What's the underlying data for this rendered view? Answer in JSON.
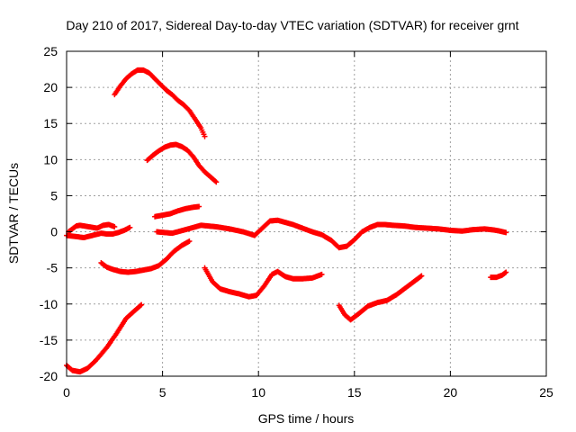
{
  "chart_data": {
    "type": "scatter",
    "title": "Day 210 of 2017, Sidereal Day-to-day VTEC variation (SDTVAR) for receiver grnt",
    "xlabel": "GPS time / hours",
    "ylabel": "SDTVAR / TECUs",
    "xlim": [
      0,
      25
    ],
    "ylim": [
      -20,
      25
    ],
    "x_ticks": [
      0,
      5,
      10,
      15,
      20,
      25
    ],
    "y_ticks": [
      -20,
      -15,
      -10,
      -5,
      0,
      5,
      10,
      15,
      20,
      25
    ],
    "x_tick_labels": [
      "0",
      "5",
      "10",
      "15",
      "20",
      "25"
    ],
    "y_tick_labels": [
      "-20",
      "-15",
      "-10",
      "-5",
      "0",
      "5",
      "10",
      "15",
      "20",
      "25"
    ],
    "grid": true,
    "marker": "plus",
    "color": "#ff0000",
    "series": [
      {
        "name": "track-upper-arc",
        "x": [
          2.5,
          2.8,
          3.1,
          3.4,
          3.7,
          4.0,
          4.3,
          4.6,
          4.9,
          5.2,
          5.5,
          5.8,
          6.1,
          6.4,
          6.7,
          7.0,
          7.2
        ],
        "y": [
          19.0,
          20.2,
          21.2,
          21.9,
          22.4,
          22.4,
          22.0,
          21.2,
          20.4,
          19.6,
          19.0,
          18.2,
          17.6,
          16.8,
          15.6,
          14.4,
          13.2
        ]
      },
      {
        "name": "track-mid-arc",
        "x": [
          4.2,
          4.5,
          4.8,
          5.1,
          5.4,
          5.7,
          6.0,
          6.3,
          6.6,
          6.9,
          7.2,
          7.5,
          7.8
        ],
        "y": [
          9.9,
          10.6,
          11.2,
          11.7,
          12.0,
          12.1,
          11.8,
          11.3,
          10.4,
          9.2,
          8.3,
          7.6,
          6.9
        ]
      },
      {
        "name": "track-short-rise",
        "x": [
          4.6,
          5.0,
          5.4,
          5.8,
          6.2,
          6.6,
          6.9
        ],
        "y": [
          2.1,
          2.3,
          2.5,
          2.9,
          3.2,
          3.4,
          3.5
        ]
      },
      {
        "name": "track-near-zero-left",
        "x": [
          0.0,
          0.3,
          0.6,
          0.9,
          1.2,
          1.5,
          1.8,
          2.1,
          2.4,
          2.7,
          3.0,
          3.3
        ],
        "y": [
          -0.5,
          -0.6,
          -0.7,
          -0.8,
          -0.6,
          -0.4,
          -0.2,
          -0.3,
          -0.3,
          -0.1,
          0.2,
          0.6
        ]
      },
      {
        "name": "track-near-zero-bumps",
        "x": [
          0.1,
          0.3,
          0.5,
          0.7,
          1.6,
          1.9,
          2.2,
          2.5
        ],
        "y": [
          0.0,
          0.4,
          0.8,
          0.9,
          0.5,
          0.9,
          1.0,
          0.7
        ]
      },
      {
        "name": "track-near-zero-main",
        "x": [
          4.7,
          5.5,
          6.2,
          7.0,
          7.8,
          8.5,
          9.2,
          9.8,
          10.2,
          10.6,
          11.0,
          11.4,
          11.8,
          12.3,
          12.8,
          13.3,
          13.8,
          14.2,
          14.6,
          15.0,
          15.4,
          15.8,
          16.2,
          16.6,
          17.0,
          17.6,
          18.2,
          18.8,
          19.4,
          20.0,
          20.6,
          21.2,
          21.8,
          22.4,
          22.9
        ],
        "y": [
          0.0,
          -0.2,
          0.3,
          0.9,
          0.7,
          0.4,
          0.0,
          -0.5,
          0.5,
          1.5,
          1.6,
          1.3,
          1.0,
          0.5,
          0.0,
          -0.4,
          -1.2,
          -2.2,
          -2.0,
          -1.1,
          0.0,
          0.6,
          1.0,
          1.0,
          0.9,
          0.8,
          0.6,
          0.5,
          0.4,
          0.2,
          0.1,
          0.3,
          0.4,
          0.2,
          -0.1
        ]
      },
      {
        "name": "track-lower-arc-a",
        "x": [
          1.8,
          2.1,
          2.4,
          2.8,
          3.2,
          3.6,
          4.0,
          4.4,
          4.8,
          5.2,
          5.6,
          6.0,
          6.4
        ],
        "y": [
          -4.3,
          -4.9,
          -5.2,
          -5.5,
          -5.6,
          -5.5,
          -5.3,
          -5.1,
          -4.7,
          -3.8,
          -2.7,
          -1.9,
          -1.3
        ]
      },
      {
        "name": "track-lower-arc-b",
        "x": [
          7.2,
          7.6,
          8.0,
          8.5,
          9.0,
          9.5,
          9.9,
          10.3,
          10.7,
          11.0,
          11.4,
          11.8,
          12.3,
          12.8,
          13.3
        ],
        "y": [
          -5.0,
          -6.9,
          -7.9,
          -8.3,
          -8.6,
          -9.0,
          -8.8,
          -7.5,
          -5.9,
          -5.5,
          -6.2,
          -6.5,
          -6.5,
          -6.4,
          -5.9
        ]
      },
      {
        "name": "track-lower-arc-c",
        "x": [
          14.2,
          14.5,
          14.8,
          15.2,
          15.7,
          16.2,
          16.7,
          17.2,
          17.7,
          18.2,
          18.5
        ],
        "y": [
          -10.2,
          -11.5,
          -12.2,
          -11.4,
          -10.3,
          -9.8,
          -9.5,
          -8.7,
          -7.7,
          -6.7,
          -6.1
        ]
      },
      {
        "name": "track-short-right",
        "x": [
          22.1,
          22.4,
          22.7,
          22.9
        ],
        "y": [
          -6.3,
          -6.3,
          -6.0,
          -5.6
        ]
      },
      {
        "name": "track-bottom-rise",
        "x": [
          0.0,
          0.3,
          0.7,
          1.1,
          1.6,
          2.1,
          2.6,
          3.1,
          3.6,
          3.9
        ],
        "y": [
          -18.5,
          -19.2,
          -19.4,
          -18.9,
          -17.6,
          -16.0,
          -14.1,
          -12.0,
          -10.8,
          -10.1
        ]
      }
    ]
  }
}
